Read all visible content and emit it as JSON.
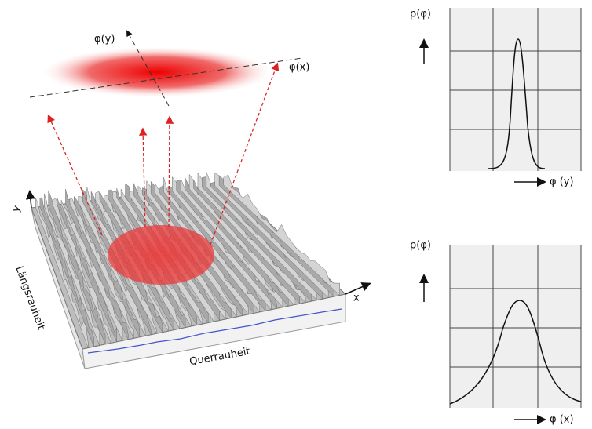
{
  "figure": {
    "ellipse_axes": {
      "y_label": "φ(y)",
      "x_label": "φ(x)"
    },
    "surface": {
      "y_axis": "y",
      "x_axis": "x",
      "side_label": "Längsrauheit",
      "front_label": "Querrauheit"
    },
    "panels": [
      {
        "y_label": "p(φ)",
        "x_label": "φ (y)"
      },
      {
        "y_label": "p(φ)",
        "x_label": "φ (x)"
      }
    ]
  }
}
